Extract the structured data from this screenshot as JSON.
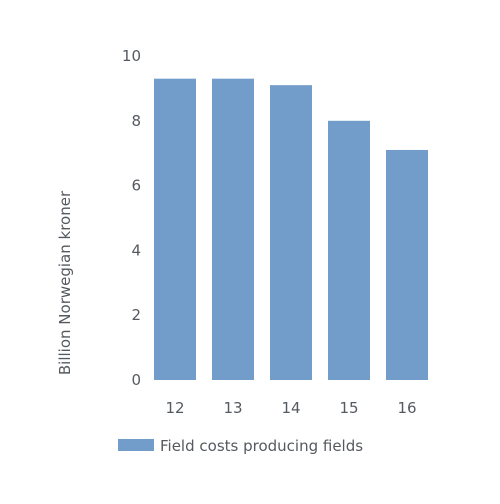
{
  "chart_data": {
    "type": "bar",
    "categories": [
      "12",
      "13",
      "14",
      "15",
      "16"
    ],
    "series": [
      {
        "name": "Field costs producing fields",
        "values": [
          9.3,
          9.3,
          9.1,
          8.0,
          7.1
        ],
        "color": "#729dcb"
      }
    ],
    "title": "",
    "xlabel": "",
    "ylabel": "Billion Norwegian kroner",
    "ylim": [
      0,
      10
    ],
    "yticks": [
      "0",
      "2",
      "4",
      "6",
      "8",
      "10"
    ],
    "grid": false,
    "legend_position": "bottom-left"
  },
  "colors": {
    "bar": "#729dcb",
    "text": "#555a60"
  }
}
